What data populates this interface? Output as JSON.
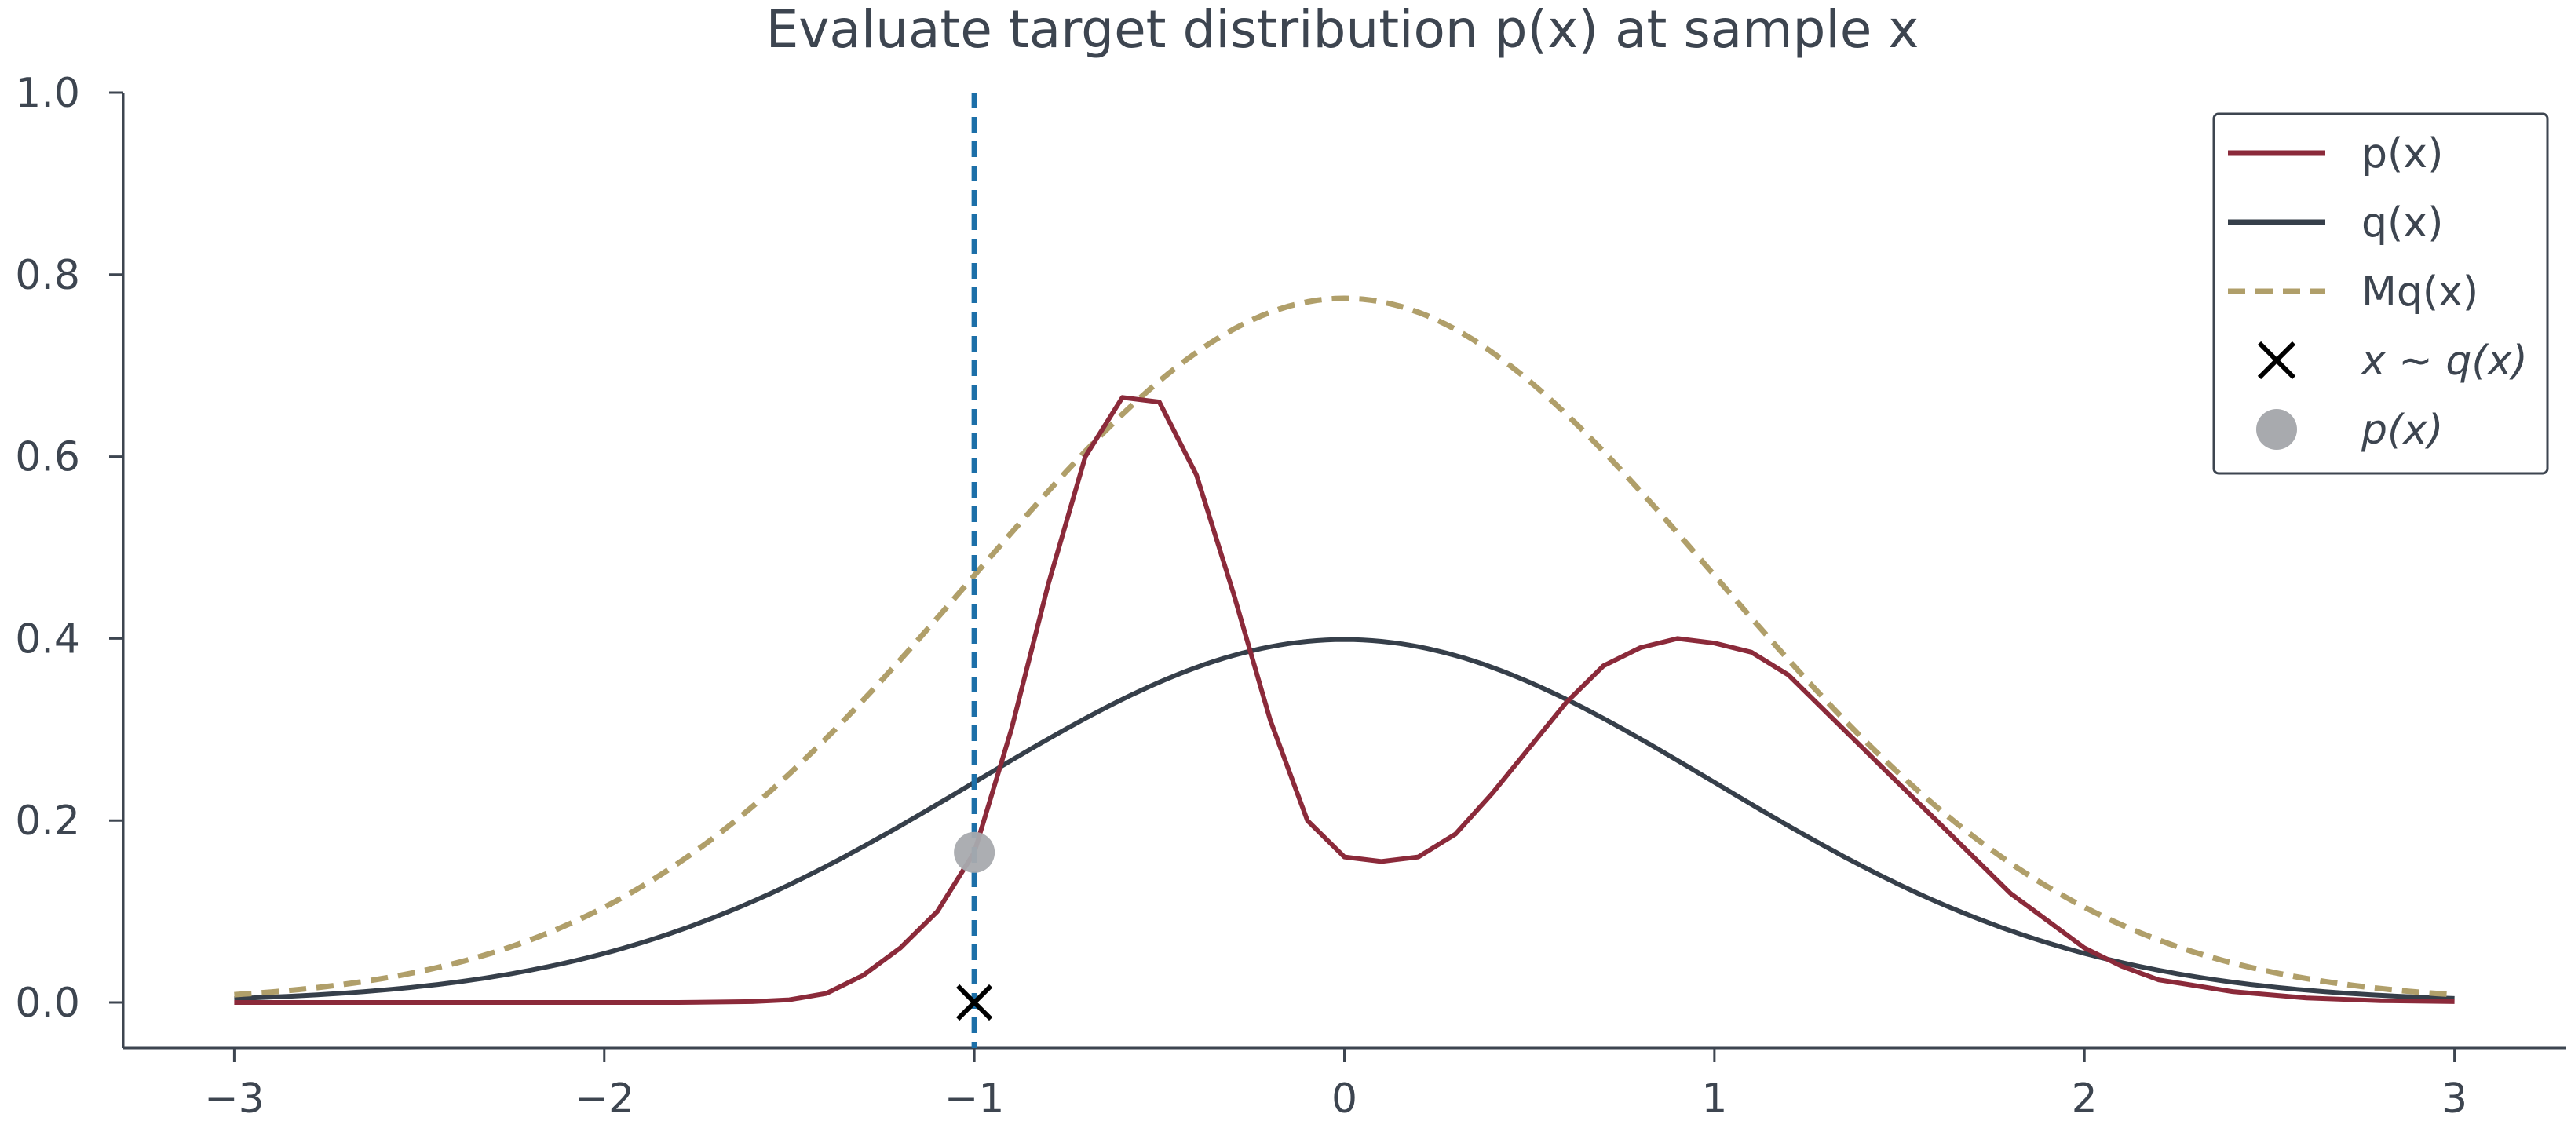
{
  "chart_data": {
    "type": "line",
    "title": "Evaluate target distribution p(x) at sample x",
    "xlabel": "",
    "ylabel": "",
    "xlim": [
      -3.3,
      3.3
    ],
    "ylim": [
      -0.05,
      1.0
    ],
    "xticks": [
      -3,
      -2,
      -1,
      0,
      1,
      2,
      3
    ],
    "xtick_labels": [
      "−3",
      "−2",
      "−1",
      "0",
      "1",
      "2",
      "3"
    ],
    "yticks": [
      0.0,
      0.2,
      0.4,
      0.6,
      0.8,
      1.0
    ],
    "ytick_labels": [
      "0.0",
      "0.2",
      "0.4",
      "0.6",
      "0.8",
      "1.0"
    ],
    "grid": false,
    "legend_position": "top-right",
    "series": [
      {
        "name": "p(x)",
        "style": "solid",
        "color": "#8b2a3a",
        "x": [
          -3.0,
          -2.8,
          -2.6,
          -2.4,
          -2.2,
          -2.0,
          -1.8,
          -1.6,
          -1.5,
          -1.4,
          -1.3,
          -1.2,
          -1.1,
          -1.0,
          -0.9,
          -0.8,
          -0.7,
          -0.6,
          -0.5,
          -0.4,
          -0.3,
          -0.2,
          -0.1,
          0.0,
          0.1,
          0.2,
          0.3,
          0.4,
          0.5,
          0.6,
          0.7,
          0.8,
          0.9,
          1.0,
          1.1,
          1.2,
          1.3,
          1.4,
          1.5,
          1.6,
          1.7,
          1.8,
          1.9,
          2.0,
          2.1,
          2.2,
          2.4,
          2.6,
          2.8,
          3.0
        ],
        "y": [
          0.0,
          0.0,
          0.0,
          0.0,
          0.0,
          0.0,
          0.0,
          0.001,
          0.003,
          0.01,
          0.03,
          0.06,
          0.1,
          0.165,
          0.3,
          0.46,
          0.6,
          0.665,
          0.66,
          0.58,
          0.45,
          0.31,
          0.2,
          0.16,
          0.155,
          0.16,
          0.185,
          0.23,
          0.28,
          0.33,
          0.37,
          0.39,
          0.4,
          0.395,
          0.385,
          0.36,
          0.32,
          0.28,
          0.24,
          0.2,
          0.16,
          0.12,
          0.09,
          0.06,
          0.04,
          0.025,
          0.012,
          0.005,
          0.002,
          0.001
        ]
      },
      {
        "name": "q(x)",
        "style": "solid",
        "color": "#363f4a",
        "function": "normal_pdf",
        "mean": 0,
        "std": 1,
        "scale": 1
      },
      {
        "name": "Mq(x)",
        "style": "dashed",
        "color": "#b09f6a",
        "function": "normal_pdf",
        "mean": 0,
        "std": 1,
        "scale": 1.94
      }
    ],
    "markers": [
      {
        "name": "x ~ q(x)",
        "symbol": "x-cross-icon",
        "x": -1.0,
        "y": 0.0,
        "color": "#000000"
      },
      {
        "name": "p(x)",
        "symbol": "filled-circle-icon",
        "x": -1.0,
        "y": 0.165,
        "color": "#a8aaae"
      }
    ],
    "vline": {
      "x": -1.0,
      "style": "dashed",
      "color": "#1c6fa8"
    },
    "legend": [
      {
        "label": "p(x)",
        "symbol": "solid-line-icon",
        "color": "#8b2a3a"
      },
      {
        "label": "q(x)",
        "symbol": "solid-line-icon",
        "color": "#363f4a"
      },
      {
        "label": "Mq(x)",
        "symbol": "dashed-line-icon",
        "color": "#b09f6a"
      },
      {
        "label": "x ~ q(x)",
        "symbol": "x-cross-icon",
        "color": "#000000",
        "math": true
      },
      {
        "label": "p(x)",
        "symbol": "filled-circle-icon",
        "color": "#a8aaae",
        "math": true
      }
    ]
  }
}
